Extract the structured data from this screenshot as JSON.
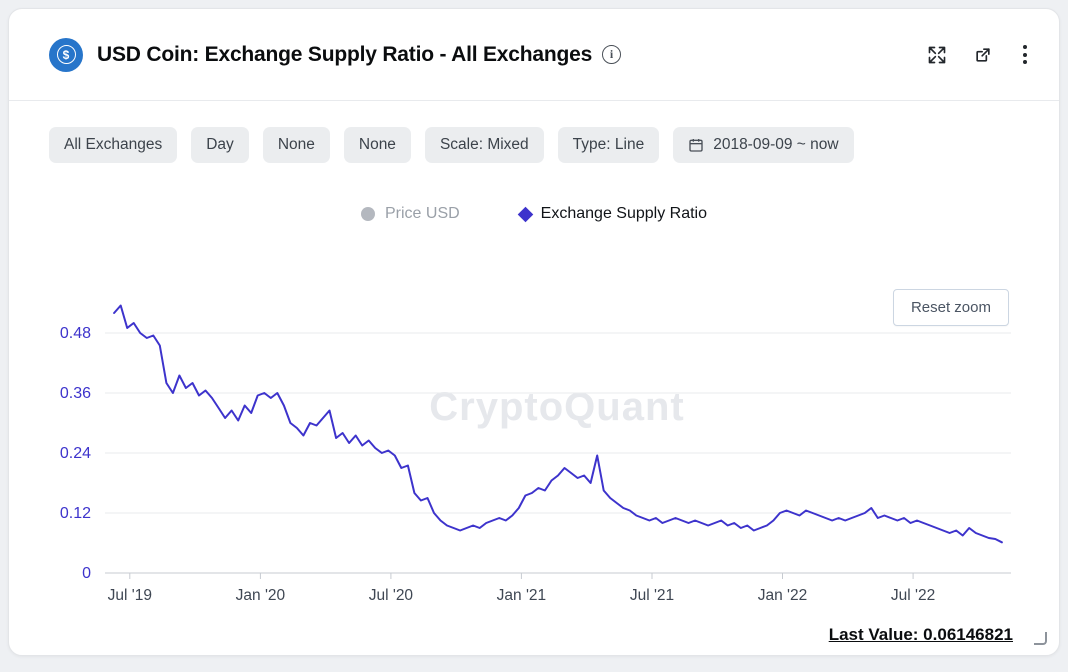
{
  "header": {
    "title": "USD Coin: Exchange Supply Ratio - All Exchanges"
  },
  "filters": {
    "chips": [
      "All Exchanges",
      "Day",
      "None",
      "None",
      "Scale: Mixed",
      "Type: Line"
    ],
    "date_range": "2018-09-09 ~ now"
  },
  "legend": [
    {
      "label": "Price USD",
      "color": "#b4b8bf",
      "marker": "circle",
      "active": false
    },
    {
      "label": "Exchange Supply Ratio",
      "color": "#3d33cc",
      "marker": "diamond",
      "active": true
    }
  ],
  "chart": {
    "reset_zoom_label": "Reset zoom",
    "watermark": "CryptoQuant",
    "last_value_label": "Last Value: 0.06146821"
  },
  "chart_data": {
    "type": "line",
    "title": "USD Coin: Exchange Supply Ratio - All Exchanges",
    "xlabel": "",
    "ylabel": "Exchange Supply Ratio",
    "grid": "horizontal",
    "legend_position": "top",
    "xlim": [
      2019.405,
      2022.875
    ],
    "ylim": [
      0,
      0.56
    ],
    "y_ticks": [
      0,
      0.12,
      0.24,
      0.36,
      0.48
    ],
    "x_ticks": [
      {
        "x": 2019.5,
        "label": "Jul '19"
      },
      {
        "x": 2020.0,
        "label": "Jan '20"
      },
      {
        "x": 2020.5,
        "label": "Jul '20"
      },
      {
        "x": 2021.0,
        "label": "Jan '21"
      },
      {
        "x": 2021.5,
        "label": "Jul '21"
      },
      {
        "x": 2022.0,
        "label": "Jan '22"
      },
      {
        "x": 2022.5,
        "label": "Jul '22"
      }
    ],
    "last_value": 0.06146821,
    "series": [
      {
        "name": "Exchange Supply Ratio",
        "color": "#3d33cc",
        "x_start": 2019.44,
        "x_step": 0.025,
        "values": [
          0.52,
          0.535,
          0.49,
          0.5,
          0.48,
          0.47,
          0.475,
          0.455,
          0.38,
          0.36,
          0.395,
          0.37,
          0.38,
          0.355,
          0.365,
          0.35,
          0.33,
          0.31,
          0.325,
          0.305,
          0.335,
          0.32,
          0.355,
          0.36,
          0.35,
          0.36,
          0.335,
          0.3,
          0.29,
          0.275,
          0.3,
          0.295,
          0.31,
          0.325,
          0.27,
          0.28,
          0.26,
          0.275,
          0.255,
          0.265,
          0.25,
          0.24,
          0.245,
          0.235,
          0.21,
          0.215,
          0.16,
          0.145,
          0.15,
          0.12,
          0.105,
          0.095,
          0.09,
          0.085,
          0.09,
          0.095,
          0.09,
          0.1,
          0.105,
          0.11,
          0.105,
          0.115,
          0.13,
          0.155,
          0.16,
          0.17,
          0.165,
          0.185,
          0.195,
          0.21,
          0.2,
          0.19,
          0.195,
          0.18,
          0.235,
          0.165,
          0.15,
          0.14,
          0.13,
          0.125,
          0.115,
          0.11,
          0.105,
          0.11,
          0.1,
          0.105,
          0.11,
          0.105,
          0.1,
          0.105,
          0.1,
          0.095,
          0.1,
          0.105,
          0.095,
          0.1,
          0.09,
          0.095,
          0.085,
          0.09,
          0.095,
          0.105,
          0.12,
          0.125,
          0.12,
          0.115,
          0.125,
          0.12,
          0.115,
          0.11,
          0.105,
          0.11,
          0.105,
          0.11,
          0.115,
          0.12,
          0.13,
          0.11,
          0.115,
          0.11,
          0.105,
          0.11,
          0.1,
          0.105,
          0.1,
          0.095,
          0.09,
          0.085,
          0.08,
          0.085,
          0.075,
          0.09,
          0.08,
          0.075,
          0.07,
          0.068,
          0.0615
        ]
      }
    ]
  }
}
